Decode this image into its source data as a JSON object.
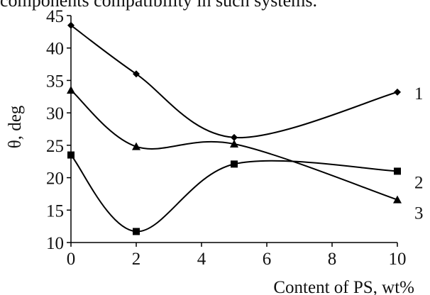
{
  "caption_fragment": "components compatibility in such systems.",
  "chart_data": {
    "type": "line",
    "x": [
      0,
      2,
      5,
      10
    ],
    "series": [
      {
        "name": "1",
        "marker": "diamond",
        "values": [
          43.5,
          36.0,
          26.2,
          33.2
        ]
      },
      {
        "name": "2",
        "marker": "square",
        "values": [
          23.5,
          11.7,
          22.1,
          21.0
        ]
      },
      {
        "name": "3",
        "marker": "triangle",
        "values": [
          33.5,
          24.8,
          25.2,
          16.6
        ]
      }
    ],
    "xticks": [
      0,
      2,
      4,
      6,
      8,
      10
    ],
    "yticks": [
      10,
      15,
      20,
      25,
      30,
      35,
      40,
      45
    ],
    "xlim": [
      0,
      10
    ],
    "ylim": [
      10,
      45
    ],
    "xlabel": "Content of PS, wt%",
    "ylabel": "θ, deg",
    "grid": false,
    "line_color": "#000000"
  }
}
